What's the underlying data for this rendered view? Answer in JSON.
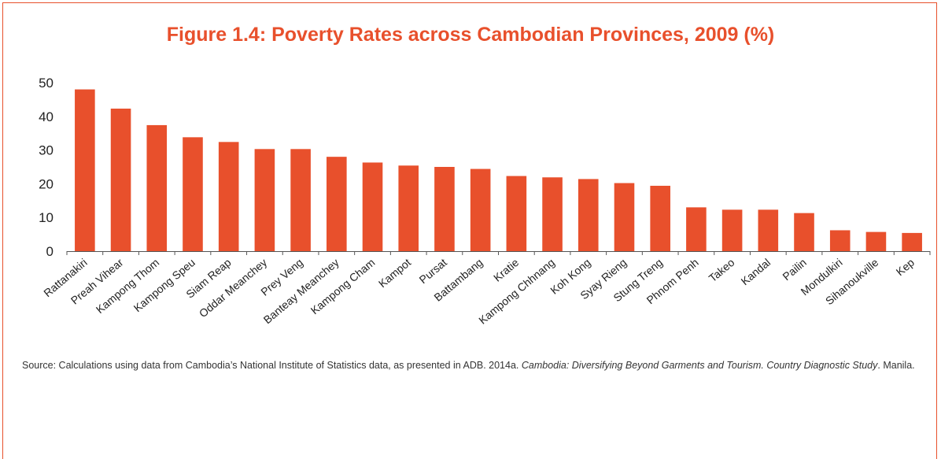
{
  "chart_data": {
    "type": "bar",
    "title": "Figure 1.4: Poverty Rates across Cambodian Provinces, 2009 (%)",
    "xlabel": "",
    "ylabel": "",
    "ylim": [
      0,
      50
    ],
    "yticks": [
      0,
      10,
      20,
      30,
      40,
      50
    ],
    "grid": false,
    "bar_color": "#E8502C",
    "categories": [
      "Rattanakiri",
      "Preah Vihear",
      "Kampong Thom",
      "Kampong Speu",
      "Siam Reap",
      "Oddar Meanchey",
      "Prey Veng",
      "Banteay Meanchey",
      "Kampong Cham",
      "Kampot",
      "Pursat",
      "Battambang",
      "Kratie",
      "Kampong Chhnang",
      "Koh Kong",
      "Syay Rieng",
      "Stung Treng",
      "Phnom Penh",
      "Takeo",
      "Kandal",
      "Pailin",
      "Mondulkiri",
      "Sihanoukville",
      "Kep"
    ],
    "values": [
      48,
      42.3,
      37.4,
      33.8,
      32.4,
      30.3,
      30.3,
      28,
      26.3,
      25.4,
      25,
      24.4,
      22.3,
      21.9,
      21.4,
      20.2,
      19.4,
      13,
      12.3,
      12.3,
      11.3,
      6.2,
      5.7,
      5.4
    ]
  },
  "source": {
    "prefix": "Source: Calculations using data from Cambodia’s National Institute of Statistics data, as presented in ADB. 2014a. ",
    "italic": "Cambodia: Diversifying Beyond Garments and Tourism. Country Diagnostic Study",
    "suffix": ". Manila."
  }
}
